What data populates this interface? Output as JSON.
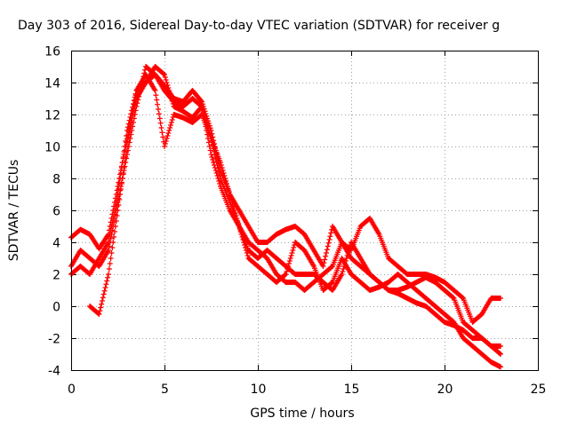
{
  "chart_data": {
    "type": "scatter",
    "title": "Day 303 of 2016, Sidereal Day-to-day VTEC variation (SDTVAR) for receiver g",
    "xlabel": "GPS time / hours",
    "ylabel": "SDTVAR / TECUs",
    "xlim": [
      0,
      25
    ],
    "ylim": [
      -4,
      16
    ],
    "xticks": [
      0,
      5,
      10,
      15,
      20,
      25
    ],
    "yticks": [
      -4,
      -2,
      0,
      2,
      4,
      6,
      8,
      10,
      12,
      14,
      16
    ],
    "grid": true,
    "legend": "none",
    "marker": "plus",
    "color": "#ff0000",
    "series": [
      {
        "x": [
          0,
          0.5,
          1.0,
          1.5,
          2.0,
          2.5,
          3.0,
          3.5,
          4.0,
          4.5,
          5.0,
          5.5,
          6.0,
          6.5,
          7.0,
          7.5,
          8.0,
          8.5,
          9.0,
          9.5,
          10.0,
          10.5,
          11.0,
          11.5,
          12.0,
          12.5,
          13.0,
          13.5,
          14.0,
          14.5,
          15.0,
          15.5,
          16.0,
          16.5,
          17.0,
          17.5,
          18.0,
          18.5,
          19.0,
          19.5,
          20.0,
          20.5,
          21.0,
          21.5,
          22.0,
          22.5,
          23.0
        ],
        "y": [
          4.3,
          4.8,
          4.5,
          3.6,
          4.5,
          7.5,
          10.5,
          13.0,
          14.0,
          14.5,
          13.8,
          13.0,
          12.8,
          13.5,
          12.8,
          11.0,
          8.5,
          7.0,
          6.0,
          5.0,
          4.0,
          4.0,
          4.5,
          4.8,
          5.0,
          4.5,
          3.5,
          2.5,
          5.0,
          4.0,
          3.5,
          5.0,
          5.5,
          4.5,
          3.0,
          2.5,
          2.0,
          2.0,
          2.0,
          1.8,
          1.5,
          1.0,
          0.5,
          -1.0,
          -0.5,
          0.5,
          0.5
        ]
      },
      {
        "x": [
          0,
          0.5,
          1.0,
          1.5,
          2.0,
          2.5,
          3.0,
          3.5,
          4.0,
          4.5,
          5.0,
          5.5,
          6.0,
          6.5,
          7.0,
          7.5,
          8.0,
          8.5,
          9.0,
          9.5,
          10.0,
          10.5,
          11.0,
          11.5,
          12.0,
          12.5,
          13.0,
          13.5,
          14.0,
          14.5,
          15.0,
          15.5,
          16.0,
          16.5,
          17.0,
          17.5,
          18.0,
          18.5,
          19.0,
          19.5,
          20.0,
          20.5,
          21.0,
          21.5,
          22.0,
          22.5,
          23.0
        ],
        "y": [
          2.5,
          3.5,
          3.0,
          2.5,
          3.5,
          6.5,
          9.5,
          12.5,
          15.0,
          14.5,
          13.5,
          12.8,
          12.5,
          13.0,
          12.5,
          10.5,
          8.0,
          6.5,
          5.0,
          3.5,
          3.0,
          3.5,
          3.0,
          2.5,
          2.0,
          2.0,
          2.0,
          1.5,
          1.0,
          2.0,
          4.0,
          3.0,
          2.0,
          1.5,
          1.0,
          1.0,
          1.2,
          1.5,
          1.8,
          1.5,
          1.0,
          0.5,
          -1.0,
          -1.5,
          -2.0,
          -2.5,
          -2.5
        ]
      },
      {
        "x": [
          0,
          0.5,
          1.0,
          1.5,
          2.0,
          2.5,
          3.0,
          3.5,
          4.0,
          4.5,
          5.0,
          5.5,
          6.0,
          6.5,
          7.0,
          7.5,
          8.0,
          8.5,
          9.0,
          9.5,
          10.0,
          10.5,
          11.0,
          11.5,
          12.0,
          12.5,
          13.0,
          13.5,
          14.0,
          14.5,
          15.0,
          15.5,
          16.0,
          16.5,
          17.0,
          17.5,
          18.0,
          18.5,
          19.0,
          19.5,
          20.0,
          20.5,
          21.0,
          21.5,
          22.0,
          22.5,
          23.0
        ],
        "y": [
          2.0,
          2.5,
          2.0,
          3.0,
          4.0,
          7.0,
          11.0,
          13.5,
          14.0,
          15.0,
          14.5,
          12.5,
          12.2,
          11.8,
          12.5,
          9.5,
          7.5,
          6.0,
          5.0,
          3.0,
          2.5,
          2.0,
          1.5,
          2.0,
          4.0,
          3.5,
          2.5,
          1.0,
          1.5,
          3.0,
          2.0,
          1.5,
          1.0,
          1.2,
          1.5,
          2.0,
          1.5,
          1.0,
          0.5,
          0,
          -0.5,
          -1.0,
          -2.0,
          -2.5,
          -3.0,
          -3.5,
          -3.8
        ]
      },
      {
        "x": [
          1.0,
          1.5,
          2.0,
          2.5,
          3.0,
          3.5,
          4.0,
          4.5,
          5.0,
          5.5,
          6.0,
          6.5,
          7.0,
          7.5,
          8.0,
          8.5,
          9.0,
          9.5,
          10.0,
          10.5,
          11.0,
          11.5,
          12.0,
          12.5,
          13.0,
          13.5,
          14.0,
          14.5,
          15.0,
          15.5,
          16.0,
          16.5,
          17.0,
          17.5,
          18.0,
          18.5,
          19.0,
          19.5,
          20.0,
          20.5,
          21.0,
          21.5,
          22.0,
          22.5,
          23.0
        ],
        "y": [
          0.0,
          -0.5,
          2.0,
          6.0,
          10.0,
          13.5,
          14.5,
          13.5,
          10.0,
          12.0,
          11.8,
          11.5,
          12.0,
          10.5,
          9.0,
          7.0,
          5.0,
          4.0,
          3.5,
          3.0,
          2.0,
          1.5,
          1.5,
          1.0,
          1.5,
          2.0,
          2.5,
          4.0,
          3.0,
          2.5,
          2.0,
          1.5,
          1.0,
          0.8,
          0.5,
          0.2,
          0.0,
          -0.5,
          -1.0,
          -1.2,
          -1.5,
          -2.0,
          -2.0,
          -2.5,
          -3.0
        ]
      }
    ]
  }
}
